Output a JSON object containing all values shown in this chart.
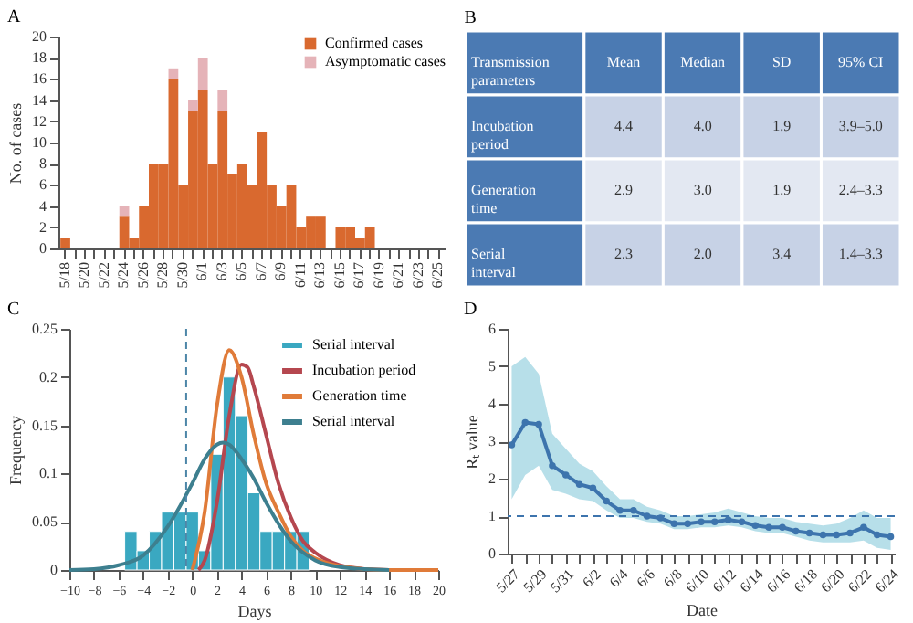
{
  "chart_data": [
    {
      "type": "bar",
      "title": "A",
      "ylabel": "No. of cases",
      "stacked": true,
      "legend": "top right",
      "ylim": [
        0,
        20
      ],
      "yticks": [
        0,
        2,
        4,
        6,
        8,
        10,
        12,
        14,
        16,
        18,
        20
      ],
      "categories": [
        "5/18",
        null,
        "5/20",
        null,
        "5/22",
        null,
        "5/24",
        null,
        "5/26",
        null,
        "5/28",
        null,
        "5/30",
        null,
        "6/1",
        null,
        "6/3",
        null,
        "6/5",
        null,
        "6/7",
        null,
        "6/9",
        null,
        "6/11",
        null,
        "6/13",
        null,
        "6/15",
        null,
        "6/17",
        null,
        "6/19",
        null,
        "6/21",
        null,
        "6/23",
        null,
        "6/25"
      ],
      "series": [
        {
          "name": "Confirmed cases",
          "color": "#d9692f",
          "values": [
            1,
            0,
            0,
            0,
            0,
            0,
            3,
            1,
            4,
            8,
            8,
            16,
            6,
            13,
            15,
            8,
            13,
            7,
            8,
            6,
            11,
            6,
            4,
            6,
            2,
            3,
            3,
            0,
            2,
            2,
            1,
            2,
            0,
            0,
            0,
            0,
            0,
            0,
            0
          ]
        },
        {
          "name": "Asymptomatic cases",
          "color": "#e5b3b8",
          "values": [
            0,
            0,
            0,
            0,
            0,
            0,
            1,
            0,
            0,
            0,
            0,
            1,
            0,
            1,
            3,
            0,
            2,
            0,
            0,
            0,
            0,
            0,
            0,
            0,
            0,
            0,
            0,
            0,
            0,
            0,
            0,
            0,
            0,
            0,
            0,
            0,
            0,
            0,
            0
          ]
        }
      ]
    },
    {
      "type": "other",
      "title": "B",
      "categories": [
        "Transmission parameters",
        "Mean",
        "Median",
        "SD",
        "95% CI"
      ],
      "y_categories": [
        "Incubation period",
        "Generation time",
        "Serial interval"
      ],
      "cell_labels": [
        [
          "4.4",
          "4.0",
          "1.9",
          "3.9–5.0"
        ],
        [
          "2.9",
          "3.0",
          "1.9",
          "2.4–3.3"
        ],
        [
          "2.3",
          "2.0",
          "3.4",
          "1.4–3.3"
        ]
      ]
    },
    {
      "type": "histogram",
      "title": "C",
      "xlabel": "Days",
      "ylabel": "Frequency",
      "legend": "top right",
      "xlim": [
        -10,
        20
      ],
      "xticks": [
        -10,
        -8,
        -6,
        -4,
        -2,
        0,
        2,
        4,
        6,
        8,
        10,
        12,
        14,
        16,
        18,
        20
      ],
      "ylim": [
        0,
        0.25
      ],
      "yticks": [
        0,
        0.05,
        0.1,
        0.15,
        0.2,
        0.25
      ],
      "ref_lines": [
        {
          "axis": "x",
          "value": -0.5,
          "line_style": "dashed",
          "color": "#4d86a8"
        }
      ],
      "series": [
        {
          "name": "Serial interval",
          "type": "histogram",
          "color": "#3aa8c1",
          "bins": [
            -5.5,
            -4.5,
            -3.5,
            -2.5,
            -1.5,
            -0.5,
            0.5,
            1.5,
            2.5,
            3.5,
            4.5,
            5.5,
            6.5,
            7.5,
            8.5,
            9.5
          ],
          "values": [
            0.04,
            0.02,
            0.04,
            0.06,
            0.06,
            0.06,
            0.02,
            0.12,
            0.2,
            0.16,
            0.08,
            0.04,
            0.04,
            0.04,
            0.04
          ]
        },
        {
          "name": "Incubation period",
          "type": "line",
          "color": "#b5474f",
          "x": [
            0.5,
            1,
            2,
            3,
            4,
            4.5,
            5,
            6,
            7,
            8,
            9,
            10,
            12,
            14,
            16
          ],
          "values": [
            0,
            0.01,
            0.07,
            0.16,
            0.213,
            0.21,
            0.19,
            0.14,
            0.09,
            0.055,
            0.03,
            0.018,
            0.005,
            0.001,
            0
          ]
        },
        {
          "name": "Generation time",
          "type": "line",
          "color": "#e07b39",
          "x": [
            0,
            1,
            2,
            3,
            4,
            5,
            6,
            7,
            8,
            9,
            10,
            12,
            14,
            16,
            20
          ],
          "values": [
            0,
            0.06,
            0.17,
            0.228,
            0.2,
            0.14,
            0.09,
            0.06,
            0.035,
            0.02,
            0.012,
            0.004,
            0.001,
            0,
            0
          ]
        },
        {
          "name": "Serial interval",
          "type": "line",
          "color": "#3d7f8f",
          "x": [
            -10,
            -8,
            -6,
            -4,
            -2,
            0,
            1,
            2,
            2.5,
            3,
            4,
            5,
            6,
            8,
            10,
            12,
            14,
            16
          ],
          "values": [
            0,
            0.001,
            0.005,
            0.015,
            0.045,
            0.09,
            0.115,
            0.13,
            0.132,
            0.13,
            0.115,
            0.095,
            0.07,
            0.03,
            0.01,
            0.003,
            0.001,
            0
          ]
        }
      ]
    },
    {
      "type": "line",
      "title": "D",
      "xlabel": "Date",
      "ylabel": "Rₜ value",
      "marker": "circle",
      "ylim": [
        0,
        6
      ],
      "yticks": [
        0,
        1,
        2,
        3,
        4,
        5,
        6
      ],
      "categories": [
        "5/27",
        null,
        "5/29",
        null,
        "5/31",
        null,
        "6/2",
        null,
        "6/4",
        null,
        "6/6",
        null,
        "6/8",
        null,
        "6/10",
        null,
        "6/12",
        null,
        "6/14",
        null,
        "6/16",
        null,
        "6/18",
        null,
        "6/20",
        null,
        "6/22",
        null,
        "6/24"
      ],
      "ref_lines": [
        {
          "axis": "y",
          "value": 1,
          "line_style": "dashed",
          "color": "#3d74ad"
        }
      ],
      "series": [
        {
          "color": "#3d74ad",
          "values": [
            2.9,
            3.5,
            3.45,
            2.35,
            2.1,
            1.85,
            1.75,
            1.4,
            1.15,
            1.15,
            1.0,
            0.95,
            0.8,
            0.8,
            0.85,
            0.85,
            0.9,
            0.85,
            0.75,
            0.7,
            0.7,
            0.6,
            0.55,
            0.5,
            0.5,
            0.55,
            0.7,
            0.5,
            0.45
          ],
          "lower": [
            1.45,
            2.1,
            2.35,
            1.7,
            1.6,
            1.45,
            1.4,
            1.15,
            0.95,
            0.95,
            0.85,
            0.8,
            0.65,
            0.65,
            0.7,
            0.7,
            0.75,
            0.7,
            0.6,
            0.55,
            0.55,
            0.45,
            0.35,
            0.3,
            0.3,
            0.3,
            0.35,
            0.15,
            0.1
          ],
          "upper": [
            5.0,
            5.25,
            4.8,
            3.2,
            2.8,
            2.4,
            2.2,
            1.8,
            1.45,
            1.45,
            1.25,
            1.15,
            1.0,
            1.0,
            1.05,
            1.1,
            1.2,
            1.1,
            1.0,
            0.95,
            0.95,
            0.85,
            0.8,
            0.75,
            0.8,
            0.95,
            1.15,
            0.95,
            0.95
          ]
        }
      ]
    }
  ]
}
